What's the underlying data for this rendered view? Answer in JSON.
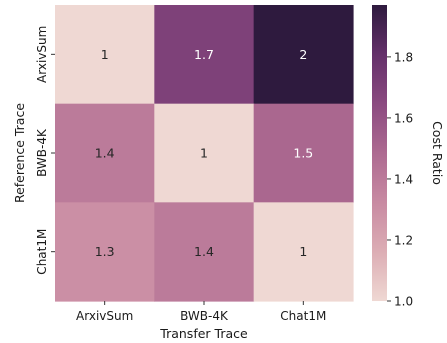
{
  "chart_data": {
    "type": "heatmap",
    "x_categories": [
      "ArxivSum",
      "BWB-4K",
      "Chat1M"
    ],
    "y_categories": [
      "ArxivSum",
      "BWB-4K",
      "Chat1M"
    ],
    "values": [
      [
        1.0,
        1.7,
        2.0
      ],
      [
        1.4,
        1.0,
        1.5
      ],
      [
        1.3,
        1.4,
        1.0
      ]
    ],
    "annotations": [
      [
        "1",
        "1.7",
        "2"
      ],
      [
        "1.4",
        "1",
        "1.5"
      ],
      [
        "1.3",
        "1.4",
        "1"
      ]
    ],
    "xlabel": "Transfer Trace",
    "ylabel": "Reference Trace",
    "colorbar": {
      "label": "Cost Ratio",
      "range": [
        1.0,
        1.97
      ],
      "ticks": [
        "1.0",
        "1.2",
        "1.4",
        "1.6",
        "1.8"
      ],
      "tick_values": [
        1.0,
        1.2,
        1.4,
        1.6,
        1.8
      ]
    },
    "colormap": [
      "#efd8d3",
      "#dcadb4",
      "#c88aa2",
      "#ad6a91",
      "#8b4a80",
      "#64306a",
      "#2e1a3e"
    ]
  }
}
